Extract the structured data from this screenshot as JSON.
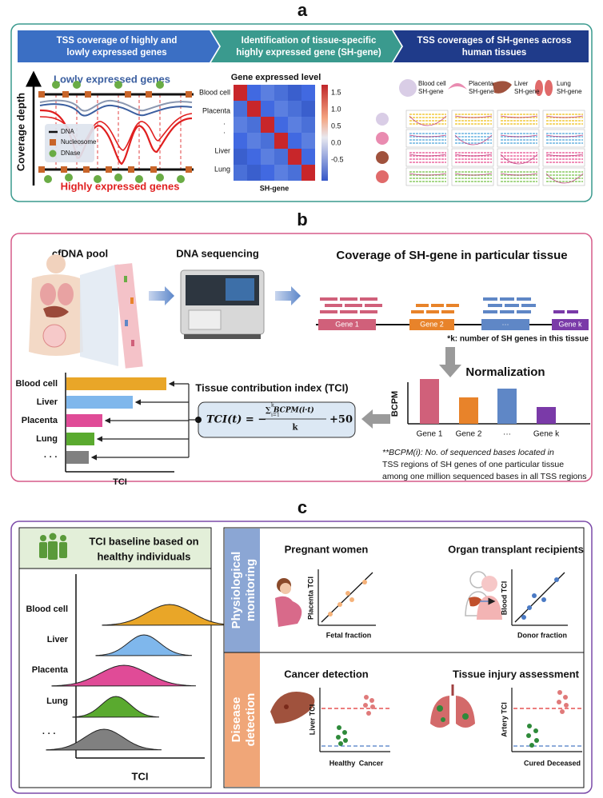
{
  "panel_a": {
    "label": "a",
    "steps": [
      [
        "TSS coverage of highly and",
        "lowly expressed genes"
      ],
      [
        "Identification of tissue-specific",
        "highly expressed gene (SH-gene)"
      ],
      [
        "TSS coverages of SH-genes across",
        "human tissues"
      ]
    ],
    "coverage": {
      "top": "Lowly expressed genes",
      "bottom": "Highly expressed genes",
      "axis": "Coverage depth",
      "legend": [
        "DNA",
        "Nucleosome",
        "DNase"
      ]
    },
    "heatmap": {
      "title": "Gene expressed level",
      "rows": [
        "Blood cell",
        "Placenta",
        "·",
        "·",
        "Liver",
        "Lung"
      ],
      "xlabel": "SH-gene",
      "colorbar": [
        "1.5",
        "1.0",
        "0.5",
        "0.0",
        "-0.5"
      ]
    },
    "tissues": [
      [
        "Blood cell",
        "SH-gene"
      ],
      [
        "Placenta",
        "SH-gene"
      ],
      [
        "Liver",
        "SH-gene"
      ],
      [
        "Lung",
        "SH-gene"
      ]
    ]
  },
  "panel_b": {
    "label": "b",
    "pool": "cfDNA pool",
    "sequencing": "DNA sequencing",
    "coverage_title": "Coverage of SH-gene in particular tissue",
    "genes": [
      "Gene 1",
      "Gene 2",
      "···",
      "Gene k"
    ],
    "k_note": "*k: number of  SH genes in this tissue",
    "normalization": "Normalization",
    "bcpm_axis": "BCPM",
    "bcpm_genes": [
      "Gene 1",
      "Gene 2",
      "···",
      "Gene k"
    ],
    "tci_title": "Tissue contribution index (TCI)",
    "formula": {
      "lhs": "TCI(t) = −",
      "sum_upper": "k",
      "sum_lower": "i=1",
      "numerator": "∑ BCPM(i·t)",
      "denominator": "k",
      "tail": "+50"
    },
    "footnote": [
      "**BCPM(i): No. of sequenced bases located in",
      "TSS regions of SH genes of one particular tissue",
      "among one million sequenced bases in all TSS regions"
    ],
    "tissues": [
      "Blood cell",
      "Liver",
      "Placenta",
      "Lung",
      "· · ·"
    ],
    "tci_axis": "TCI"
  },
  "panel_c": {
    "label": "c",
    "baseline": {
      "title": [
        "TCI baseline based on",
        "healthy individuals"
      ],
      "tissues": [
        "Blood cell",
        "Liver",
        "Placenta",
        "Lung",
        "· · ·"
      ],
      "axis": "TCI"
    },
    "physiological": {
      "label": [
        "Physiological",
        "monitoring"
      ],
      "pregnant": {
        "title": "Pregnant women",
        "y": "Placenta TCI",
        "x": "Fetal fraction"
      },
      "transplant": {
        "title": "Organ transplant recipients",
        "y": "Blood TCI",
        "x": "Donor fraction"
      }
    },
    "disease": {
      "label": [
        "Disease",
        "detection"
      ],
      "cancer": {
        "title": "Cancer detection",
        "y": "Liver TCI",
        "groups": [
          "Healthy",
          "Cancer"
        ]
      },
      "injury": {
        "title": "Tissue injury assessment",
        "y": "Artery TCI",
        "groups": [
          "Cured",
          "Deceased"
        ]
      }
    }
  }
}
